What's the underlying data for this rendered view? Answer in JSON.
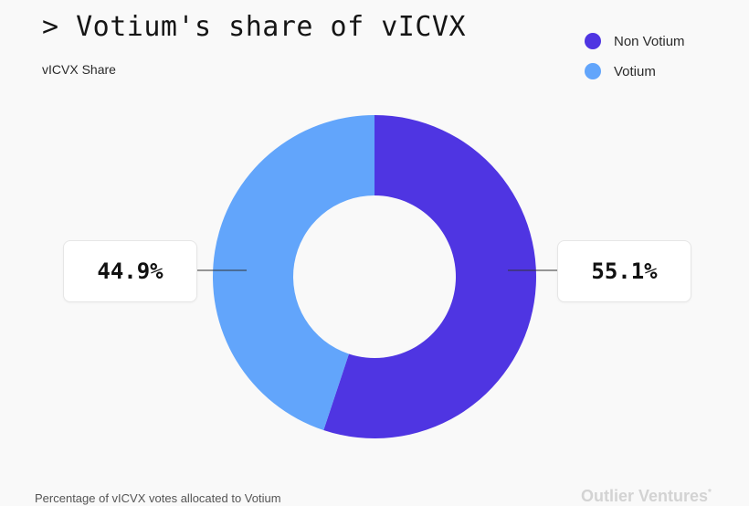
{
  "title": "> Votium's share of vICVX",
  "subtitle": "vICVX Share",
  "legend": [
    {
      "label": "Non Votium",
      "color": "#4f35e2"
    },
    {
      "label": "Votium",
      "color": "#62a5fb"
    }
  ],
  "chart_data": {
    "type": "pie",
    "donut": true,
    "slices": [
      {
        "name": "Non Votium",
        "value": 55.1,
        "label": "55.1%",
        "color": "#4f35e2"
      },
      {
        "name": "Votium",
        "value": 44.9,
        "label": "44.9%",
        "color": "#62a5fb"
      }
    ],
    "legend_position": "top-right"
  },
  "footer": {
    "note": "Percentage of vICVX votes allocated to Votium",
    "brand": "Outlier Ventures",
    "brand_mark": "*"
  }
}
